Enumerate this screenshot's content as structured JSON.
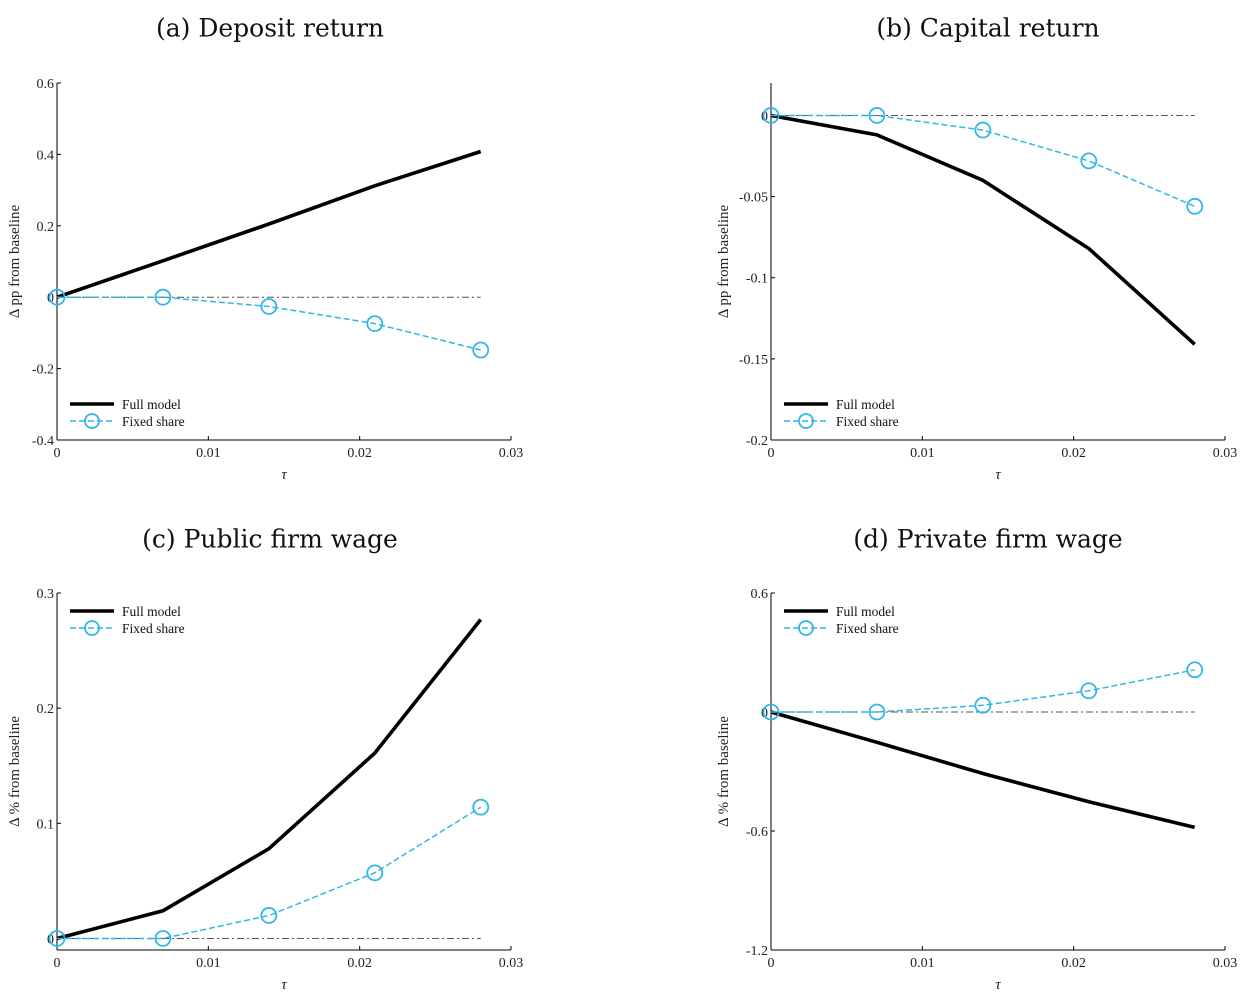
{
  "chart_data": [
    {
      "type": "line",
      "title": "(a) Deposit return",
      "xlabel": "τ",
      "ylabel": "Δ pp from baseline",
      "xlim": [
        0,
        0.03
      ],
      "ylim": [
        -0.4,
        0.6
      ],
      "xticks": [
        0,
        0.01,
        0.02,
        0.03
      ],
      "xtick_labels": [
        "0",
        "0.01",
        "0.02",
        "0.03"
      ],
      "yticks": [
        -0.4,
        -0.2,
        0,
        0.2,
        0.4,
        0.6
      ],
      "ytick_labels": [
        "-0.4",
        "-0.2",
        "0",
        "0.2",
        "0.4",
        "0.6"
      ],
      "grid": false,
      "legend_position": "bottom-left",
      "x": [
        0,
        0.007,
        0.014,
        0.021,
        0.028
      ],
      "series": [
        {
          "name": "Full model",
          "values": [
            0,
            0.102,
            0.205,
            0.312,
            0.408
          ],
          "color": "#000000",
          "style": "solid",
          "marker": "none"
        },
        {
          "name": "Fixed share",
          "values": [
            0,
            0,
            -0.026,
            -0.074,
            -0.148
          ],
          "color": "#31B6EA",
          "style": "dashed",
          "marker": "circle"
        }
      ],
      "reference_line": {
        "y": 0,
        "style": "dash-dot"
      }
    },
    {
      "type": "line",
      "title": "(b) Capital return",
      "xlabel": "τ",
      "ylabel": "Δ pp from baseline",
      "xlim": [
        0,
        0.03
      ],
      "ylim": [
        -0.2,
        0.02
      ],
      "xticks": [
        0,
        0.01,
        0.02,
        0.03
      ],
      "xtick_labels": [
        "0",
        "0.01",
        "0.02",
        "0.03"
      ],
      "yticks": [
        -0.2,
        -0.15,
        -0.1,
        -0.05,
        0
      ],
      "ytick_labels": [
        "-0.2",
        "-0.15",
        "-0.1",
        "-0.05",
        "0"
      ],
      "grid": false,
      "legend_position": "bottom-left",
      "x": [
        0,
        0.007,
        0.014,
        0.021,
        0.028
      ],
      "series": [
        {
          "name": "Full model",
          "values": [
            0,
            -0.012,
            -0.04,
            -0.082,
            -0.141
          ],
          "color": "#000000",
          "style": "solid",
          "marker": "none"
        },
        {
          "name": "Fixed share",
          "values": [
            0,
            0,
            -0.009,
            -0.028,
            -0.056
          ],
          "color": "#31B6EA",
          "style": "dashed",
          "marker": "circle"
        }
      ],
      "reference_line": {
        "y": 0,
        "style": "dash-dot"
      }
    },
    {
      "type": "line",
      "title": "(c) Public firm wage",
      "xlabel": "τ",
      "ylabel": "Δ % from baseline",
      "xlim": [
        0,
        0.03
      ],
      "ylim": [
        -0.01,
        0.3
      ],
      "xticks": [
        0,
        0.01,
        0.02,
        0.03
      ],
      "xtick_labels": [
        "0",
        "0.01",
        "0.02",
        "0.03"
      ],
      "yticks": [
        0,
        0.1,
        0.2,
        0.3
      ],
      "ytick_labels": [
        "0",
        "0.1",
        "0.2",
        "0.3"
      ],
      "grid": false,
      "legend_position": "top-left",
      "x": [
        0,
        0.007,
        0.014,
        0.021,
        0.028
      ],
      "series": [
        {
          "name": "Full model",
          "values": [
            0,
            0.024,
            0.078,
            0.161,
            0.277
          ],
          "color": "#000000",
          "style": "solid",
          "marker": "none"
        },
        {
          "name": "Fixed share",
          "values": [
            0,
            0,
            0.02,
            0.057,
            0.114
          ],
          "color": "#31B6EA",
          "style": "dashed",
          "marker": "circle"
        }
      ],
      "reference_line": {
        "y": 0,
        "style": "dash-dot"
      }
    },
    {
      "type": "line",
      "title": "(d) Private firm wage",
      "xlabel": "τ",
      "ylabel": "Δ % from baseline",
      "xlim": [
        0,
        0.03
      ],
      "ylim": [
        -1.2,
        0.6
      ],
      "xticks": [
        0,
        0.01,
        0.02,
        0.03
      ],
      "xtick_labels": [
        "0",
        "0.01",
        "0.02",
        "0.03"
      ],
      "yticks": [
        -1.2,
        -0.6,
        0,
        0.6
      ],
      "ytick_labels": [
        "-1.2",
        "-0.6",
        "0",
        "0.6"
      ],
      "grid": false,
      "legend_position": "top-left",
      "x": [
        0,
        0.007,
        0.014,
        0.021,
        0.028
      ],
      "series": [
        {
          "name": "Full model",
          "values": [
            0,
            -0.153,
            -0.31,
            -0.453,
            -0.582
          ],
          "color": "#000000",
          "style": "solid",
          "marker": "none"
        },
        {
          "name": "Fixed share",
          "values": [
            0,
            0,
            0.034,
            0.107,
            0.213
          ],
          "color": "#31B6EA",
          "style": "dashed",
          "marker": "circle"
        }
      ],
      "reference_line": {
        "y": 0,
        "style": "dash-dot"
      }
    }
  ]
}
